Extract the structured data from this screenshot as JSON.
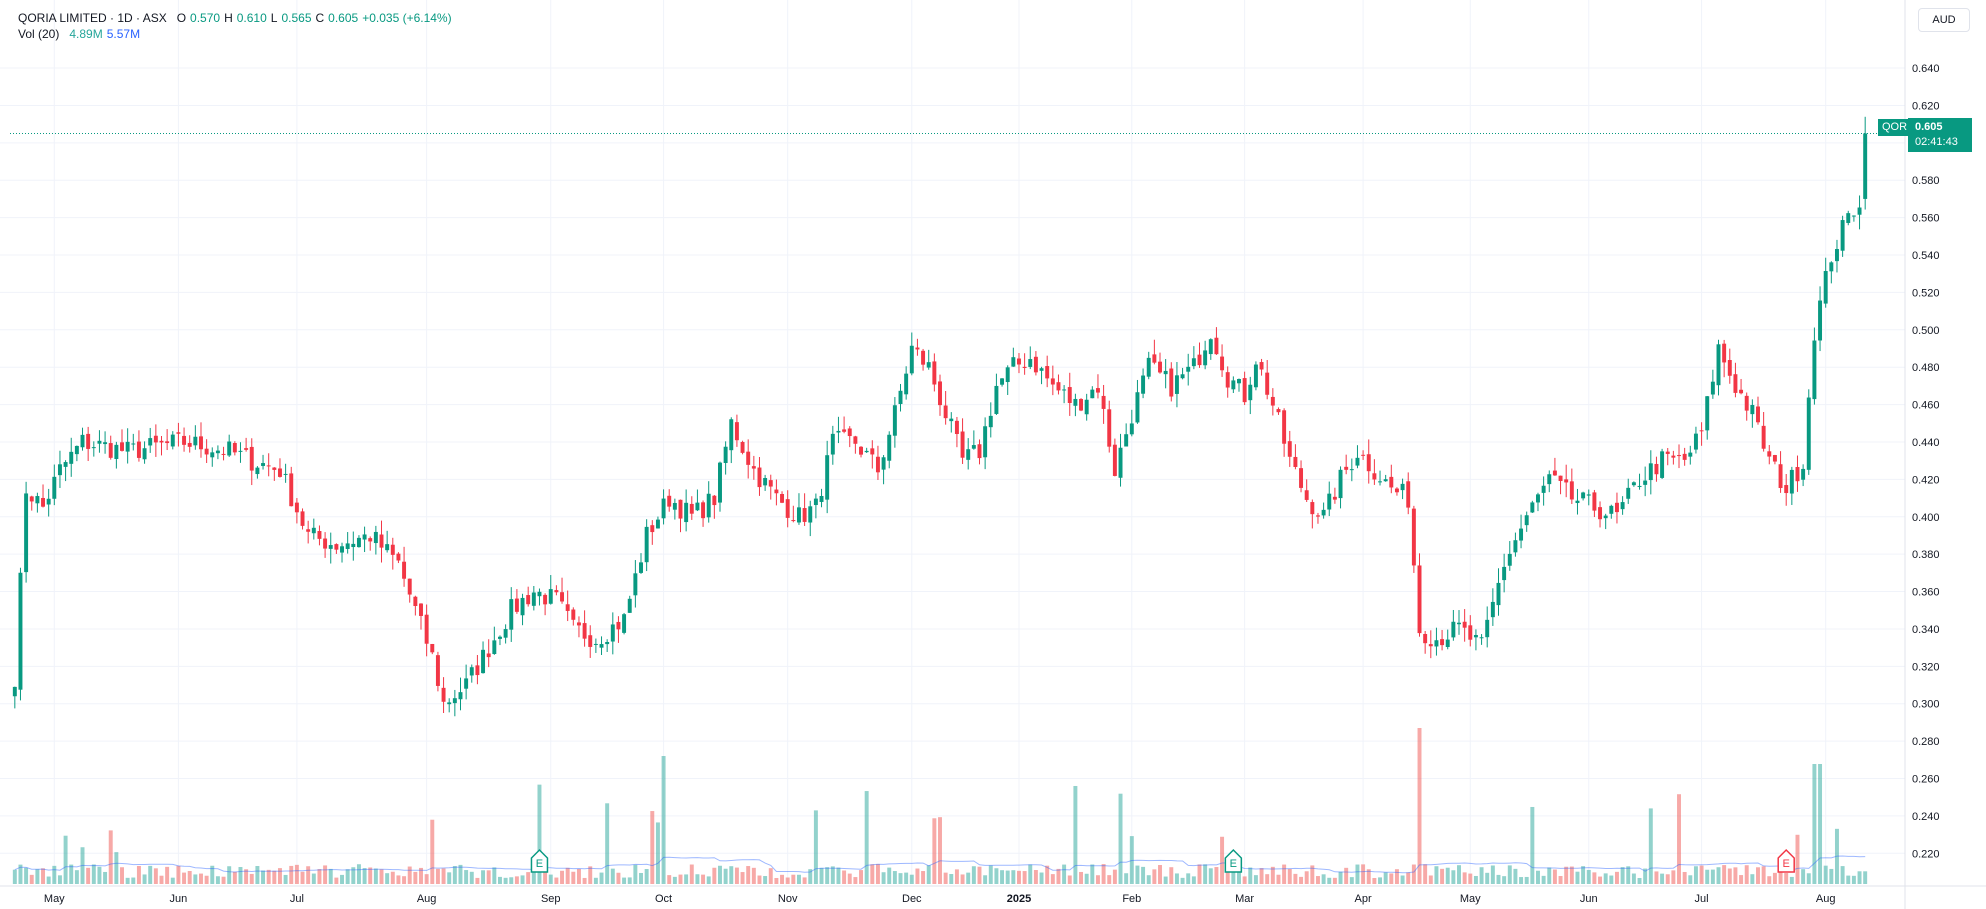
{
  "legend": {
    "name": "QORIA LIMITED · 1D · ASX",
    "open_label": "O",
    "open": "0.570",
    "high_label": "H",
    "high": "0.610",
    "low_label": "L",
    "low": "0.565",
    "close_label": "C",
    "close": "0.605",
    "change": "+0.035 (+6.14%)",
    "vol_label": "Vol (20)",
    "vol_value": "4.89M",
    "vol_ma": "5.57M"
  },
  "currency": "AUD",
  "last_price": {
    "symbol": "QOR",
    "price": "0.605",
    "countdown": "02:41:43"
  },
  "colors": {
    "up": "#089981",
    "down": "#f23645",
    "vol_up": "#26a69a",
    "vol_down": "#ef5350",
    "vol_ma": "#2962ff",
    "grid": "#f0f3fa"
  },
  "chart_data": {
    "type": "candlestick",
    "y_ticks": [
      "0.220",
      "0.240",
      "0.260",
      "0.280",
      "0.300",
      "0.320",
      "0.340",
      "0.360",
      "0.380",
      "0.400",
      "0.420",
      "0.440",
      "0.460",
      "0.480",
      "0.500",
      "0.520",
      "0.540",
      "0.560",
      "0.580",
      "0.600",
      "0.620",
      "0.640"
    ],
    "ylim": [
      0.21,
      0.655
    ],
    "x_ticks": [
      {
        "label": "May",
        "idx": 7
      },
      {
        "label": "Jun",
        "idx": 29
      },
      {
        "label": "Jul",
        "idx": 50
      },
      {
        "label": "Aug",
        "idx": 73
      },
      {
        "label": "Sep",
        "idx": 95
      },
      {
        "label": "Oct",
        "idx": 115
      },
      {
        "label": "Nov",
        "idx": 137
      },
      {
        "label": "Dec",
        "idx": 159
      },
      {
        "label": "2025",
        "idx": 178
      },
      {
        "label": "Feb",
        "idx": 198
      },
      {
        "label": "Mar",
        "idx": 218
      },
      {
        "label": "Apr",
        "idx": 239
      },
      {
        "label": "May",
        "idx": 258
      },
      {
        "label": "Jun",
        "idx": 279
      },
      {
        "label": "Jul",
        "idx": 299
      },
      {
        "label": "Aug",
        "idx": 321
      }
    ],
    "bar_count": 322,
    "earnings_marker_label": "E",
    "earnings_idx": [
      93,
      216,
      314
    ],
    "anchors": [
      [
        0,
        0.315
      ],
      [
        2,
        0.415
      ],
      [
        5,
        0.405
      ],
      [
        8,
        0.425
      ],
      [
        12,
        0.44
      ],
      [
        20,
        0.435
      ],
      [
        30,
        0.44
      ],
      [
        38,
        0.435
      ],
      [
        42,
        0.43
      ],
      [
        47,
        0.425
      ],
      [
        52,
        0.39
      ],
      [
        57,
        0.385
      ],
      [
        63,
        0.39
      ],
      [
        68,
        0.375
      ],
      [
        71,
        0.35
      ],
      [
        74,
        0.325
      ],
      [
        76,
        0.3
      ],
      [
        80,
        0.31
      ],
      [
        84,
        0.33
      ],
      [
        88,
        0.35
      ],
      [
        92,
        0.36
      ],
      [
        96,
        0.355
      ],
      [
        99,
        0.34
      ],
      [
        103,
        0.335
      ],
      [
        108,
        0.345
      ],
      [
        112,
        0.39
      ],
      [
        116,
        0.41
      ],
      [
        120,
        0.4
      ],
      [
        124,
        0.41
      ],
      [
        127,
        0.45
      ],
      [
        131,
        0.425
      ],
      [
        135,
        0.41
      ],
      [
        139,
        0.4
      ],
      [
        142,
        0.405
      ],
      [
        145,
        0.44
      ],
      [
        149,
        0.44
      ],
      [
        153,
        0.425
      ],
      [
        156,
        0.455
      ],
      [
        159,
        0.49
      ],
      [
        162,
        0.48
      ],
      [
        165,
        0.455
      ],
      [
        168,
        0.43
      ],
      [
        171,
        0.435
      ],
      [
        174,
        0.47
      ],
      [
        177,
        0.48
      ],
      [
        180,
        0.485
      ],
      [
        184,
        0.47
      ],
      [
        188,
        0.46
      ],
      [
        192,
        0.47
      ],
      [
        195,
        0.425
      ],
      [
        198,
        0.455
      ],
      [
        201,
        0.48
      ],
      [
        205,
        0.47
      ],
      [
        209,
        0.48
      ],
      [
        212,
        0.5
      ],
      [
        215,
        0.475
      ],
      [
        218,
        0.465
      ],
      [
        220,
        0.485
      ],
      [
        223,
        0.46
      ],
      [
        226,
        0.43
      ],
      [
        229,
        0.41
      ],
      [
        232,
        0.4
      ],
      [
        235,
        0.42
      ],
      [
        238,
        0.435
      ],
      [
        241,
        0.425
      ],
      [
        244,
        0.415
      ],
      [
        247,
        0.41
      ],
      [
        249,
        0.34
      ],
      [
        252,
        0.335
      ],
      [
        256,
        0.34
      ],
      [
        260,
        0.33
      ],
      [
        264,
        0.375
      ],
      [
        268,
        0.4
      ],
      [
        272,
        0.42
      ],
      [
        276,
        0.41
      ],
      [
        280,
        0.405
      ],
      [
        284,
        0.4
      ],
      [
        288,
        0.42
      ],
      [
        292,
        0.43
      ],
      [
        296,
        0.43
      ],
      [
        299,
        0.445
      ],
      [
        302,
        0.49
      ],
      [
        305,
        0.47
      ],
      [
        308,
        0.455
      ],
      [
        311,
        0.43
      ],
      [
        314,
        0.415
      ],
      [
        317,
        0.43
      ],
      [
        319,
        0.5
      ],
      [
        322,
        0.54
      ],
      [
        325,
        0.56
      ],
      [
        327,
        0.57
      ],
      [
        328,
        0.605
      ]
    ]
  }
}
